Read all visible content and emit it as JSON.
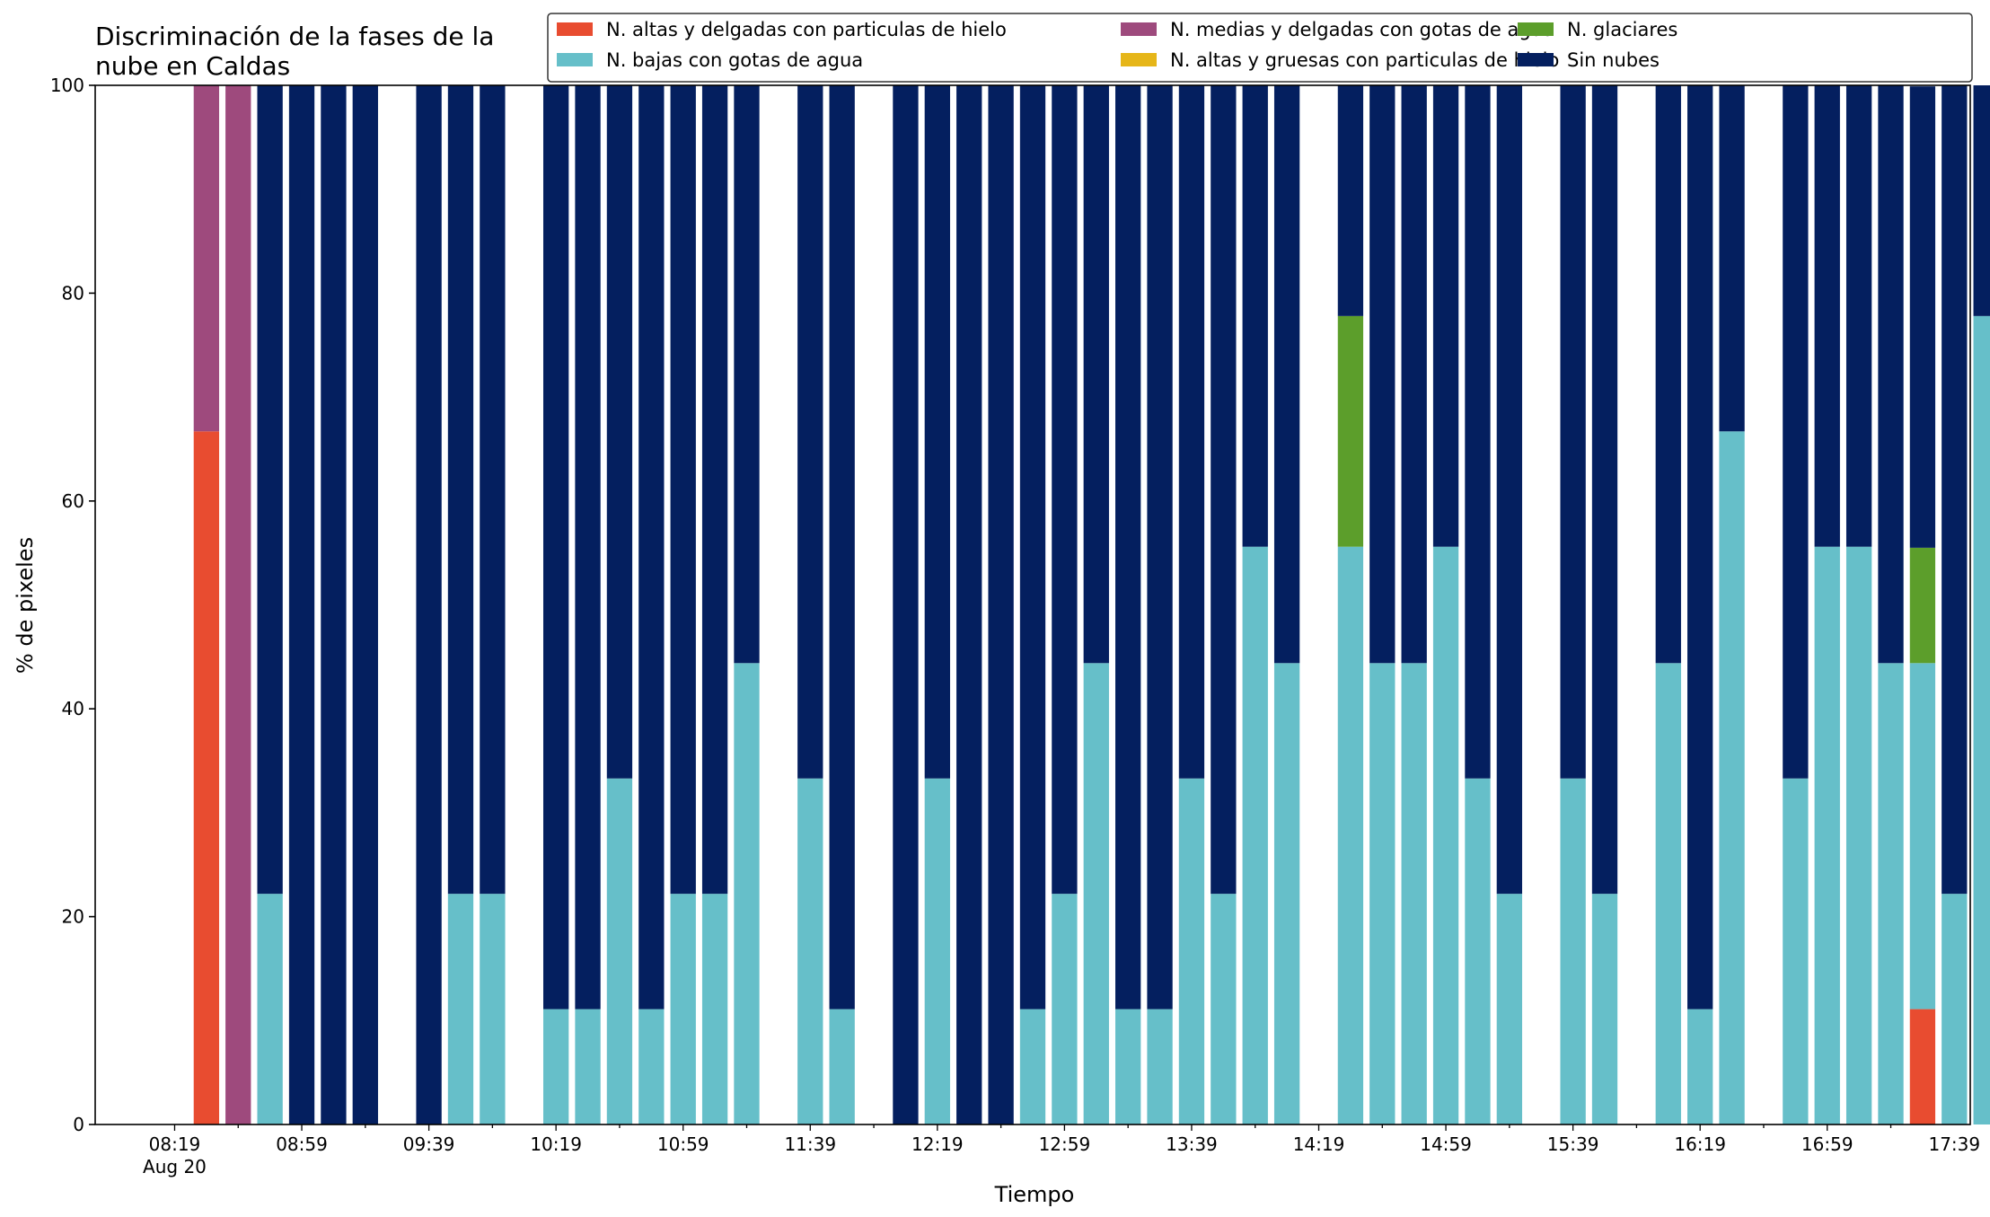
{
  "chart_data": {
    "type": "bar",
    "stacked": true,
    "title_lines": [
      "Discriminación de la fases de la",
      "nube en Caldas"
    ],
    "xlabel": "Tiempo",
    "ylabel": "% de pixeles",
    "ylim": [
      0,
      100
    ],
    "yticks": [
      0,
      20,
      40,
      60,
      80,
      100
    ],
    "xlim_minutes": [
      -25,
      565
    ],
    "x_start_label": "08:19",
    "x_start_sublabel": "Aug 20",
    "xtick_labels": [
      "08:19",
      "08:59",
      "09:39",
      "10:19",
      "10:59",
      "11:39",
      "12:19",
      "12:59",
      "13:39",
      "14:19",
      "14:59",
      "15:39",
      "16:19",
      "16:59",
      "17:39"
    ],
    "grid": false,
    "legend_position": "top-right",
    "times": [
      "08:29",
      "08:39",
      "08:49",
      "08:59",
      "09:09",
      "09:19",
      "09:39",
      "09:49",
      "09:59",
      "10:19",
      "10:29",
      "10:39",
      "10:49",
      "10:59",
      "11:09",
      "11:19",
      "11:39",
      "11:49",
      "12:09",
      "12:19",
      "12:29",
      "12:39",
      "12:49",
      "12:59",
      "13:09",
      "13:19",
      "13:29",
      "13:39",
      "13:49",
      "13:59",
      "14:09",
      "14:29",
      "14:39",
      "14:49",
      "14:59",
      "15:09",
      "15:19",
      "15:39",
      "15:49",
      "16:09",
      "16:19",
      "16:29",
      "16:49",
      "16:59",
      "17:09",
      "17:19",
      "17:29",
      "17:39",
      "17:49"
    ],
    "series": [
      {
        "name": "N. altas y delgadas con particulas de hielo",
        "color": "#e84c30",
        "values": [
          66.7,
          0,
          0,
          0,
          0,
          0,
          0,
          0,
          0,
          0,
          0,
          0,
          0,
          0,
          0,
          0,
          0,
          0,
          0,
          0,
          0,
          0,
          0,
          0,
          0,
          0,
          0,
          0,
          0,
          0,
          0,
          0,
          0,
          0,
          0,
          0,
          0,
          0,
          0,
          0,
          0,
          0,
          0,
          0,
          0,
          0,
          11.1,
          0,
          0
        ]
      },
      {
        "name": "N. altas y gruesas con particulas de hielo",
        "color": "#e6b619",
        "values": [
          0,
          0,
          0,
          0,
          0,
          0,
          0,
          0,
          0,
          0,
          0,
          0,
          0,
          0,
          0,
          0,
          0,
          0,
          0,
          0,
          0,
          0,
          0,
          0,
          0,
          0,
          0,
          0,
          0,
          0,
          0,
          0,
          0,
          0,
          0,
          0,
          0,
          0,
          0,
          0,
          0,
          0,
          0,
          0,
          0,
          0,
          0,
          0,
          0
        ]
      },
      {
        "name": "N. bajas con gotas de agua",
        "color": "#66bfc9",
        "values": [
          0,
          0,
          22.2,
          0,
          0,
          0,
          0,
          22.2,
          22.2,
          11.1,
          11.1,
          33.3,
          11.1,
          22.2,
          22.2,
          44.4,
          33.3,
          11.1,
          0,
          33.3,
          0,
          0,
          11.1,
          22.2,
          44.4,
          11.1,
          11.1,
          33.3,
          22.2,
          55.6,
          44.4,
          55.6,
          44.4,
          44.4,
          55.6,
          33.3,
          22.2,
          33.3,
          22.2,
          44.4,
          11.1,
          66.7,
          33.3,
          55.6,
          55.6,
          44.4,
          33.3,
          22.2,
          77.8
        ]
      },
      {
        "name": "N. glaciares",
        "color": "#5c9e2b",
        "values": [
          0,
          0,
          0,
          0,
          0,
          0,
          0,
          0,
          0,
          0,
          0,
          0,
          0,
          0,
          0,
          0,
          0,
          0,
          0,
          0,
          0,
          0,
          0,
          0,
          0,
          0,
          0,
          0,
          0,
          0,
          0,
          22.2,
          0,
          0,
          0,
          0,
          0,
          0,
          0,
          0,
          0,
          0,
          0,
          0,
          0,
          0,
          11.1,
          0,
          0
        ]
      },
      {
        "name": "N. medias y delgadas con gotas de agua",
        "color": "#9e4a7d",
        "values": [
          33.3,
          100,
          0,
          0,
          0,
          0,
          0,
          0,
          0,
          0,
          0,
          0,
          0,
          0,
          0,
          0,
          0,
          0,
          0,
          0,
          0,
          0,
          0,
          0,
          0,
          0,
          0,
          0,
          0,
          0,
          0,
          0,
          0,
          0,
          0,
          0,
          0,
          0,
          0,
          0,
          0,
          0,
          0,
          0,
          0,
          0,
          0,
          0,
          0
        ]
      },
      {
        "name": "Sin nubes",
        "color": "#041f5f",
        "values": [
          0,
          0,
          77.8,
          100,
          100,
          100,
          100,
          77.8,
          77.8,
          88.9,
          88.9,
          66.7,
          88.9,
          77.8,
          77.8,
          55.6,
          66.7,
          88.9,
          100,
          66.7,
          100,
          100,
          88.9,
          77.8,
          55.6,
          88.9,
          88.9,
          66.7,
          77.8,
          44.4,
          55.6,
          22.2,
          55.6,
          55.6,
          44.4,
          66.7,
          77.8,
          66.7,
          77.8,
          55.6,
          88.9,
          33.3,
          66.7,
          44.4,
          44.4,
          55.6,
          44.4,
          77.8,
          22.2
        ]
      }
    ],
    "stack_order": [
      0,
      1,
      2,
      3,
      4,
      5
    ],
    "legend_order": [
      0,
      2,
      4,
      1,
      3,
      5
    ]
  }
}
